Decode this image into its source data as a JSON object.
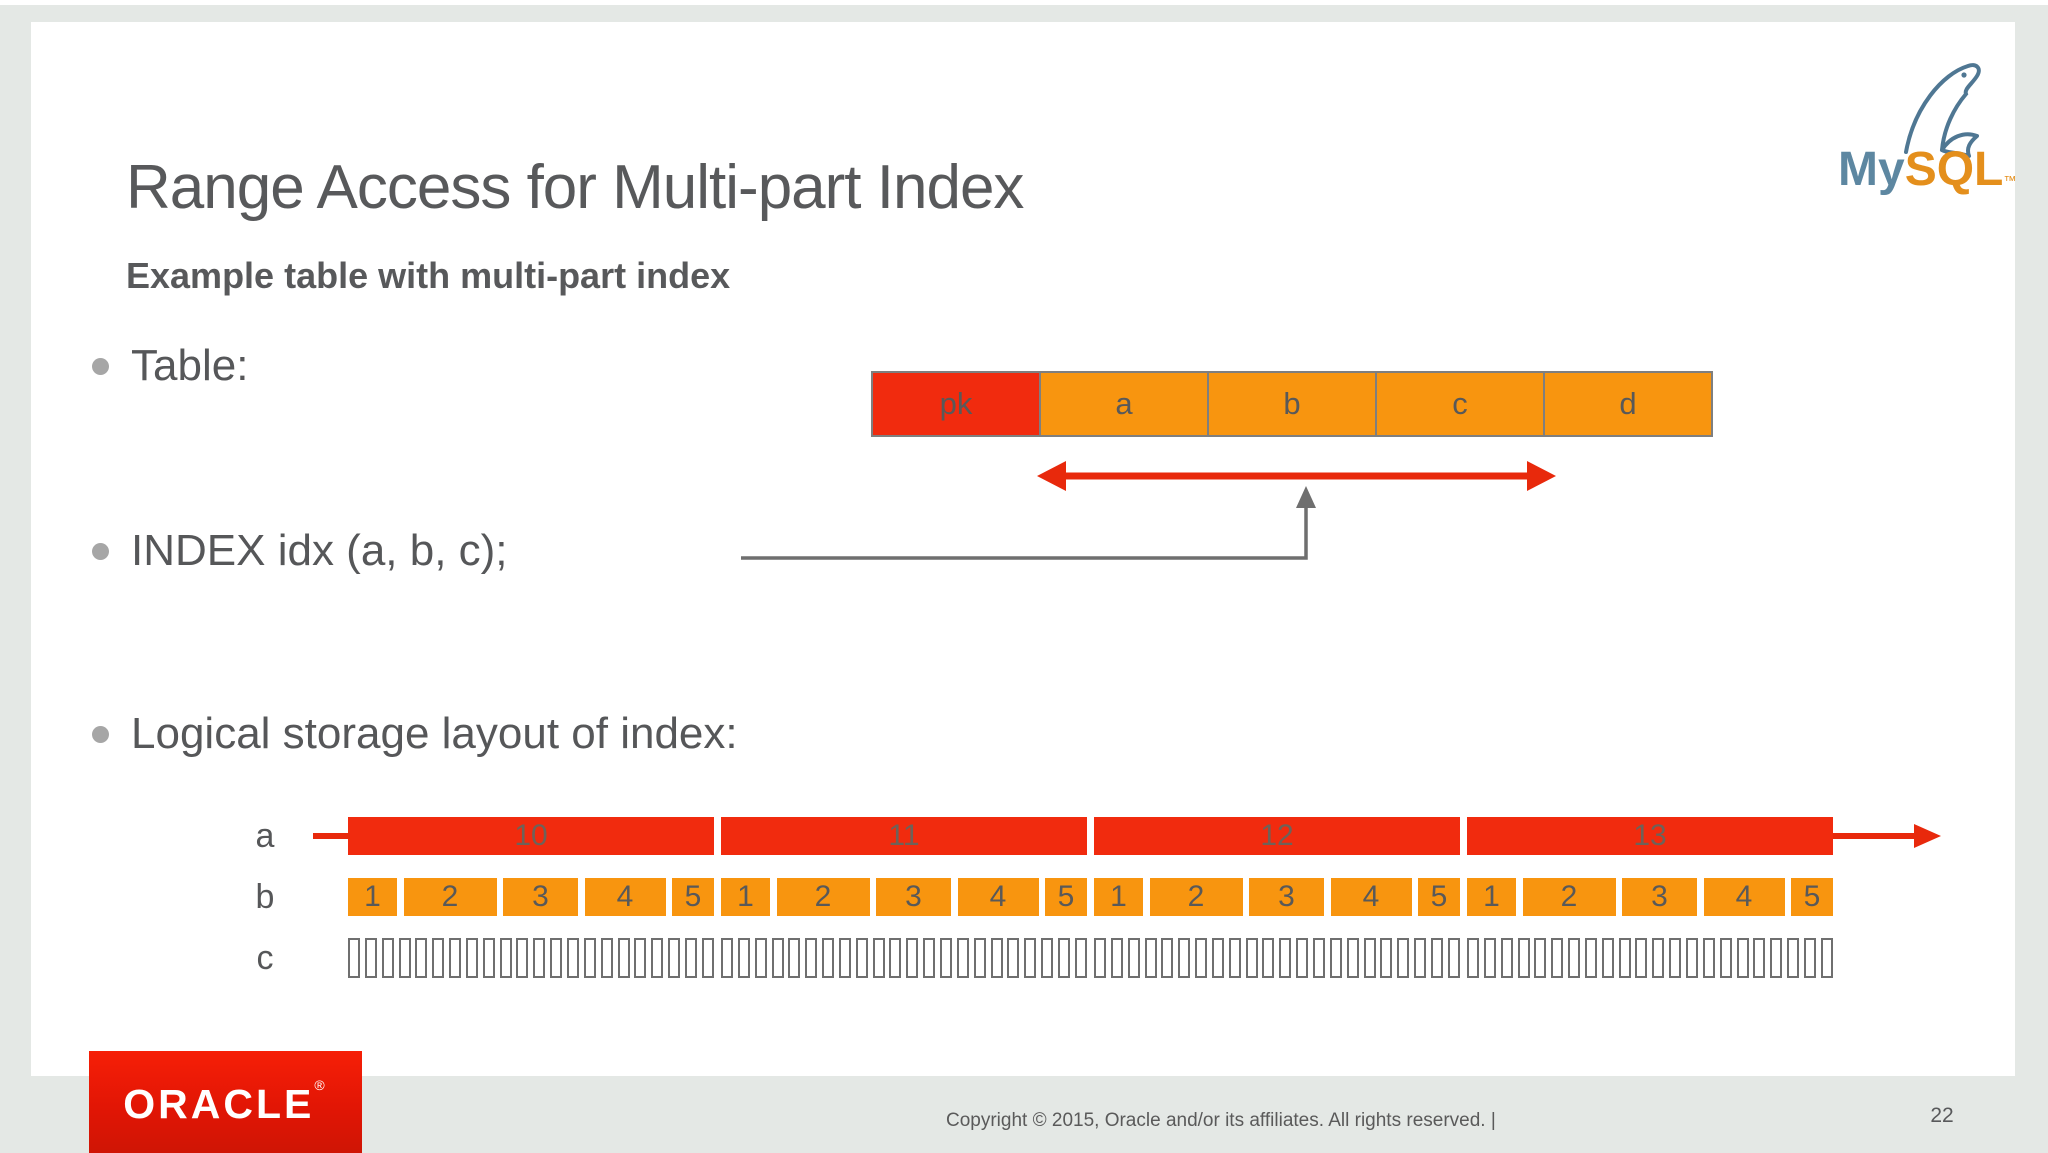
{
  "slide": {
    "title": "Range Access for Multi-part Index",
    "subtitle": "Example table with multi-part index",
    "bullets": [
      "Table:",
      "INDEX idx (a, b, c);",
      "Logical storage layout of index:"
    ],
    "footer": "Copyright © 2015, Oracle and/or its affiliates. All rights reserved.  |",
    "page_number": "22"
  },
  "logos": {
    "oracle_text": "ORACLE",
    "oracle_reg": "®",
    "mysql_my": "My",
    "mysql_sql": "SQL",
    "mysql_tm": "™"
  },
  "table_diagram": {
    "columns": [
      {
        "label": "pk",
        "type": "pk"
      },
      {
        "label": "a",
        "type": "idx"
      },
      {
        "label": "b",
        "type": "idx"
      },
      {
        "label": "c",
        "type": "idx"
      },
      {
        "label": "d",
        "type": "idx"
      }
    ]
  },
  "index_layout": {
    "row_labels": {
      "a": "a",
      "b": "b",
      "c": "c"
    },
    "a_segments": [
      "10",
      "11",
      "12",
      "13"
    ],
    "b_values": [
      "1",
      "2",
      "3",
      "4",
      "5"
    ],
    "b_widths": [
      49,
      93,
      75,
      81,
      42
    ],
    "c_cells_per_group": 22,
    "group_starts": [
      0,
      373,
      746,
      1119
    ],
    "group_width": 366
  },
  "colors": {
    "red": "#f12b0e",
    "orange": "#f8950f",
    "border_gray": "#7f7f7f",
    "text_gray": "#595959",
    "oracle_red": "#e91d0c",
    "mysql_blue": "#5d87a1",
    "mysql_orange": "#e48f1c",
    "page_bg": "#e4e8e5"
  }
}
